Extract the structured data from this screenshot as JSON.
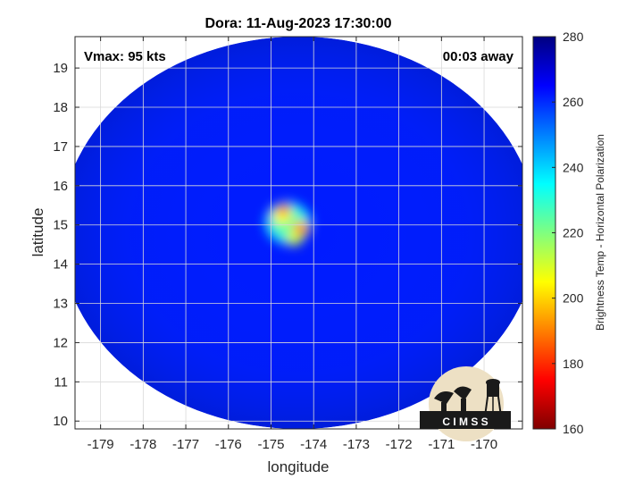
{
  "chart_data": {
    "type": "heatmap",
    "title": "Dora: 11-Aug-2023 17:30:00",
    "xlabel": "longitude",
    "ylabel": "latitude",
    "xlim": [
      -179.6,
      -169.1
    ],
    "ylim": [
      9.8,
      19.8
    ],
    "x_ticks": [
      -179,
      -178,
      -177,
      -176,
      -175,
      -174,
      -173,
      -172,
      -171,
      -170
    ],
    "y_ticks": [
      10,
      11,
      12,
      13,
      14,
      15,
      16,
      17,
      18,
      19
    ],
    "x_tick_labels": [
      "-179",
      "-178",
      "-177",
      "-176",
      "-175",
      "-174",
      "-173",
      "-172",
      "-171",
      "-170"
    ],
    "y_tick_labels": [
      "10",
      "11",
      "12",
      "13",
      "14",
      "15",
      "16",
      "17",
      "18",
      "19"
    ],
    "grid": true,
    "annotations": {
      "vmax": "Vmax: 95 kts",
      "away": "00:03 away"
    },
    "swath": {
      "center_lon": -174.35,
      "center_lat": 14.8,
      "radius_lon": 5.6,
      "radius_lat": 5.0,
      "background_value": 262
    },
    "eye": {
      "center_lon": -174.6,
      "center_lat": 15.05,
      "features": [
        {
          "lon": -174.6,
          "lat": 15.05,
          "r": 0.55,
          "value": 240
        },
        {
          "lon": -174.6,
          "lat": 15.05,
          "r": 0.38,
          "value": 225
        },
        {
          "lon": -174.75,
          "lat": 15.25,
          "r": 0.22,
          "value": 205
        },
        {
          "lon": -174.7,
          "lat": 15.4,
          "r": 0.14,
          "value": 185
        },
        {
          "lon": -174.3,
          "lat": 14.9,
          "r": 0.2,
          "value": 200
        },
        {
          "lon": -174.3,
          "lat": 14.9,
          "r": 0.12,
          "value": 178
        },
        {
          "lon": -174.45,
          "lat": 14.65,
          "r": 0.18,
          "value": 210
        }
      ]
    },
    "colorbar": {
      "label": "Brightness Temp - Horizontal Polarization",
      "min": 160,
      "max": 280,
      "ticks": [
        160,
        180,
        200,
        220,
        240,
        260,
        280
      ],
      "tick_labels": [
        "160",
        "180",
        "200",
        "220",
        "240",
        "260",
        "280"
      ],
      "colormap": "jet"
    }
  },
  "logo": {
    "text": "C I M S S"
  }
}
